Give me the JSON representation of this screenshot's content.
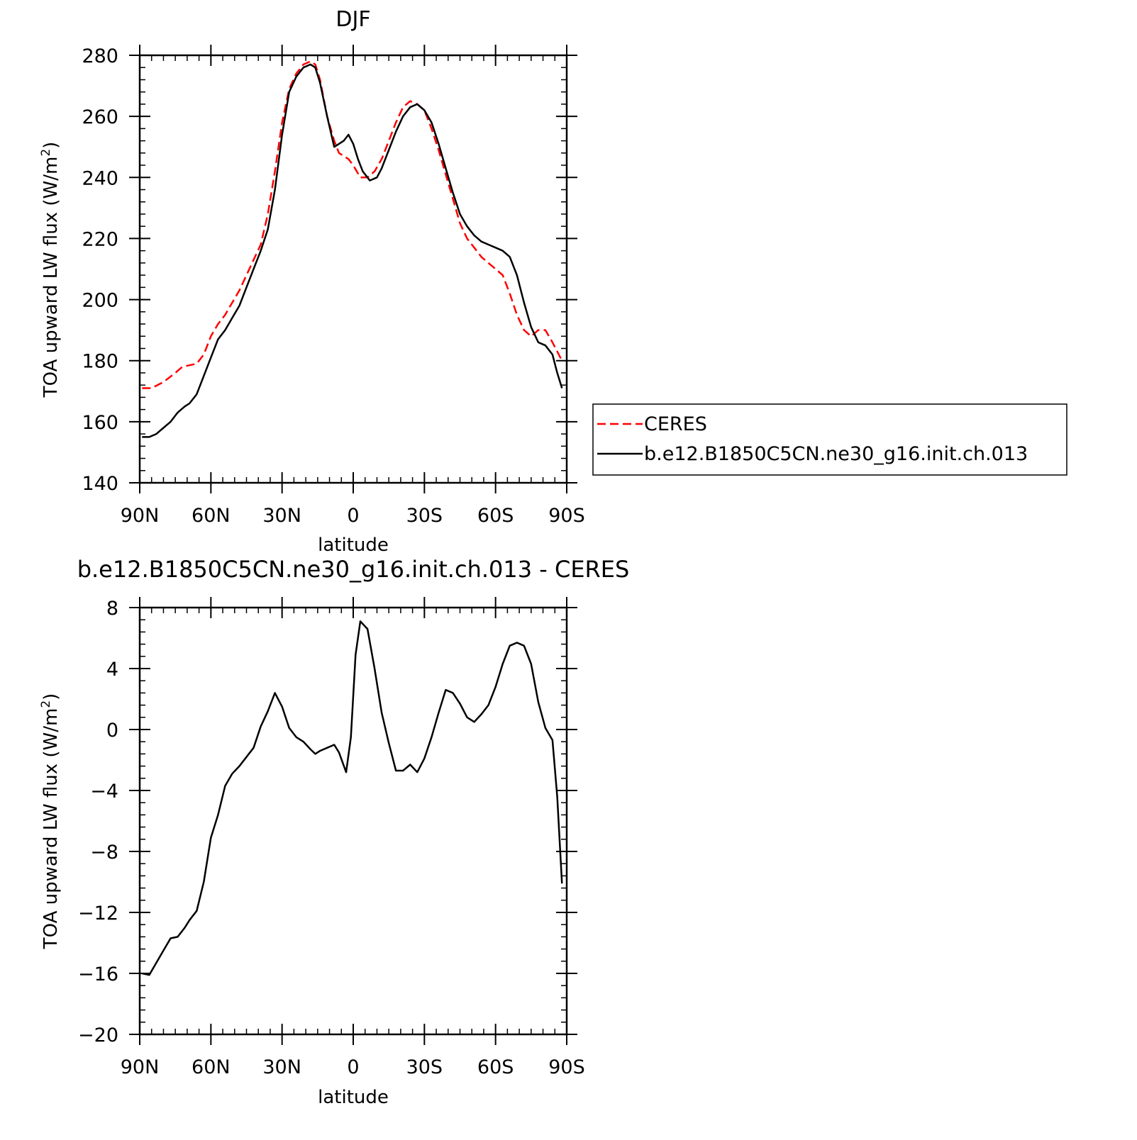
{
  "chart_data": [
    {
      "type": "line",
      "title": "DJF",
      "xlabel": "latitude",
      "ylabel": "TOA upward LW flux (W/m",
      "ylabel_sup": "2",
      "ylabel_close": ")",
      "xlim": [
        -90,
        90
      ],
      "ylim": [
        140,
        280
      ],
      "x_ticks": [
        -90,
        -60,
        -30,
        0,
        30,
        60,
        90
      ],
      "x_tick_labels": [
        "90N",
        "60N",
        "30N",
        "0",
        "30S",
        "60S",
        "90S"
      ],
      "y_ticks": [
        140,
        160,
        180,
        200,
        220,
        240,
        260,
        280
      ],
      "y_tick_labels": [
        "140",
        "160",
        "180",
        "200",
        "220",
        "240",
        "260",
        "280"
      ],
      "legend_position": "right",
      "series": [
        {
          "name": "CERES",
          "color": "#ff0000",
          "dash": "dashed",
          "x": [
            -89,
            -85,
            -80,
            -75,
            -72,
            -69,
            -66,
            -63,
            -60,
            -57,
            -54,
            -51,
            -48,
            -45,
            -42,
            -39,
            -36,
            -33,
            -30,
            -27,
            -24,
            -21,
            -18,
            -16,
            -14,
            -11,
            -8,
            -6,
            -4,
            -2,
            0,
            3,
            6,
            9,
            12,
            15,
            18,
            21,
            24,
            27,
            30,
            33,
            36,
            39,
            42,
            45,
            48,
            51,
            54,
            57,
            60,
            63,
            66,
            69,
            72,
            75,
            78,
            81,
            84,
            86,
            88
          ],
          "y": [
            171,
            171,
            173,
            176,
            178,
            178.5,
            179,
            182,
            188,
            192,
            195,
            199,
            203,
            208,
            213,
            218,
            228,
            242,
            258,
            269,
            274,
            277,
            278,
            277,
            272,
            260,
            252,
            248,
            247,
            246,
            244,
            240,
            240,
            242,
            246,
            252,
            258,
            263,
            265,
            264,
            262,
            256,
            249,
            241,
            233,
            225,
            220,
            217,
            214,
            212,
            210,
            208,
            202,
            195,
            190,
            188,
            190,
            190,
            186,
            183,
            180
          ]
        },
        {
          "name": "b.e12.B1850C5CN.ne30_g16.init.ch.013",
          "color": "#000000",
          "dash": "solid",
          "x": [
            -89,
            -86,
            -83,
            -80,
            -77,
            -74,
            -71,
            -69,
            -66,
            -63,
            -60,
            -57,
            -54,
            -51,
            -48,
            -45,
            -42,
            -39,
            -36,
            -33,
            -30,
            -27,
            -24,
            -21,
            -18,
            -16,
            -14,
            -11,
            -8,
            -6,
            -4,
            -2,
            0,
            2,
            4,
            7,
            10,
            12,
            15,
            18,
            21,
            24,
            27,
            30,
            33,
            36,
            39,
            42,
            45,
            48,
            51,
            54,
            57,
            60,
            63,
            66,
            69,
            72,
            75,
            78,
            81,
            84,
            86,
            88
          ],
          "y": [
            155,
            155,
            156,
            158,
            160,
            163,
            165,
            166,
            169,
            175,
            181,
            187,
            190,
            194,
            198,
            204,
            210,
            216,
            223,
            236,
            254,
            268,
            273,
            276,
            277,
            276,
            271,
            260,
            250,
            251,
            252,
            254,
            251,
            246,
            242,
            239,
            240,
            243,
            249,
            255,
            260,
            263,
            264,
            262,
            258,
            251,
            243,
            235,
            228,
            224,
            221,
            219,
            218,
            217,
            216,
            214,
            208,
            199,
            191,
            186,
            185,
            182,
            176,
            171
          ]
        }
      ]
    },
    {
      "type": "line",
      "title": "b.e12.B1850C5CN.ne30_g16.init.ch.013 - CERES",
      "xlabel": "latitude",
      "ylabel": "TOA upward LW flux (W/m",
      "ylabel_sup": "2",
      "ylabel_close": ")",
      "xlim": [
        -90,
        90
      ],
      "ylim": [
        -20,
        8
      ],
      "x_ticks": [
        -90,
        -60,
        -30,
        0,
        30,
        60,
        90
      ],
      "x_tick_labels": [
        "90N",
        "60N",
        "30N",
        "0",
        "30S",
        "60S",
        "90S"
      ],
      "y_ticks": [
        -20,
        -16,
        -12,
        -8,
        -4,
        0,
        4,
        8
      ],
      "y_tick_labels": [
        "−20",
        "−16",
        "−12",
        "−8",
        "−4",
        "0",
        "4",
        "8"
      ],
      "series": [
        {
          "name": "",
          "color": "#000000",
          "dash": "solid",
          "x": [
            -89,
            -86,
            -83,
            -80,
            -77,
            -74,
            -71,
            -69,
            -66,
            -63,
            -60,
            -57,
            -54,
            -51,
            -48,
            -45,
            -42,
            -39,
            -36,
            -33,
            -30,
            -27,
            -24,
            -21,
            -18,
            -16,
            -14,
            -11,
            -8,
            -6,
            -3,
            -1,
            1,
            3,
            6,
            9,
            12,
            15,
            18,
            21,
            24,
            27,
            30,
            33,
            36,
            39,
            42,
            45,
            48,
            51,
            54,
            57,
            60,
            63,
            66,
            69,
            72,
            75,
            78,
            81,
            84,
            86,
            88
          ],
          "y": [
            -16.0,
            -16.1,
            -15.3,
            -14.5,
            -13.7,
            -13.6,
            -13.0,
            -12.5,
            -11.9,
            -10.0,
            -7.1,
            -5.6,
            -3.7,
            -2.9,
            -2.4,
            -1.8,
            -1.2,
            0.2,
            1.2,
            2.4,
            1.5,
            0.1,
            -0.5,
            -0.8,
            -1.3,
            -1.6,
            -1.4,
            -1.2,
            -1.0,
            -1.5,
            -2.8,
            -0.5,
            4.9,
            7.1,
            6.6,
            4.0,
            1.1,
            -0.9,
            -2.7,
            -2.7,
            -2.3,
            -2.8,
            -1.9,
            -0.5,
            1.1,
            2.6,
            2.4,
            1.7,
            0.8,
            0.5,
            1.0,
            1.6,
            2.8,
            4.3,
            5.5,
            5.7,
            5.5,
            4.3,
            1.8,
            0.1,
            -0.7,
            -4.4,
            -10.1
          ]
        }
      ]
    }
  ]
}
